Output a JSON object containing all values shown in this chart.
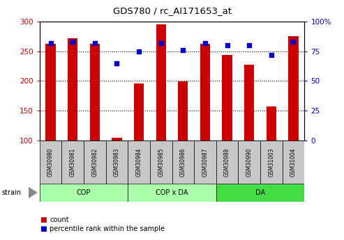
{
  "title": "GDS780 / rc_AI171653_at",
  "samples": [
    "GSM30980",
    "GSM30981",
    "GSM30982",
    "GSM30983",
    "GSM30984",
    "GSM30985",
    "GSM30986",
    "GSM30987",
    "GSM30988",
    "GSM30990",
    "GSM31003",
    "GSM31004"
  ],
  "count_values": [
    262,
    272,
    263,
    104,
    196,
    295,
    199,
    263,
    244,
    227,
    157,
    276
  ],
  "percentile_values": [
    82,
    83,
    82,
    65,
    75,
    82,
    76,
    82,
    80,
    80,
    72,
    83
  ],
  "count_base": 100,
  "count_min": 100,
  "count_max": 300,
  "pct_min": 0,
  "pct_max": 100,
  "count_ticks": [
    100,
    150,
    200,
    250,
    300
  ],
  "pct_ticks": [
    0,
    25,
    50,
    75,
    100
  ],
  "pct_tick_labels": [
    "0",
    "25",
    "50",
    "75",
    "100%"
  ],
  "bar_color": "#CC0000",
  "dot_color": "#0000CC",
  "bar_width": 0.45,
  "dot_size": 20,
  "sample_box_color": "#C8C8C8",
  "count_color": "#CC0000",
  "pct_color": "#0000CC",
  "group_light_color": "#AAFFAA",
  "group_dark_color": "#44DD44",
  "group_defs": [
    {
      "label": "COP",
      "start": 0,
      "end": 3,
      "color": "#AAFFAA"
    },
    {
      "label": "COP x DA",
      "start": 4,
      "end": 7,
      "color": "#AAFFAA"
    },
    {
      "label": "DA",
      "start": 8,
      "end": 11,
      "color": "#44DD44"
    }
  ]
}
